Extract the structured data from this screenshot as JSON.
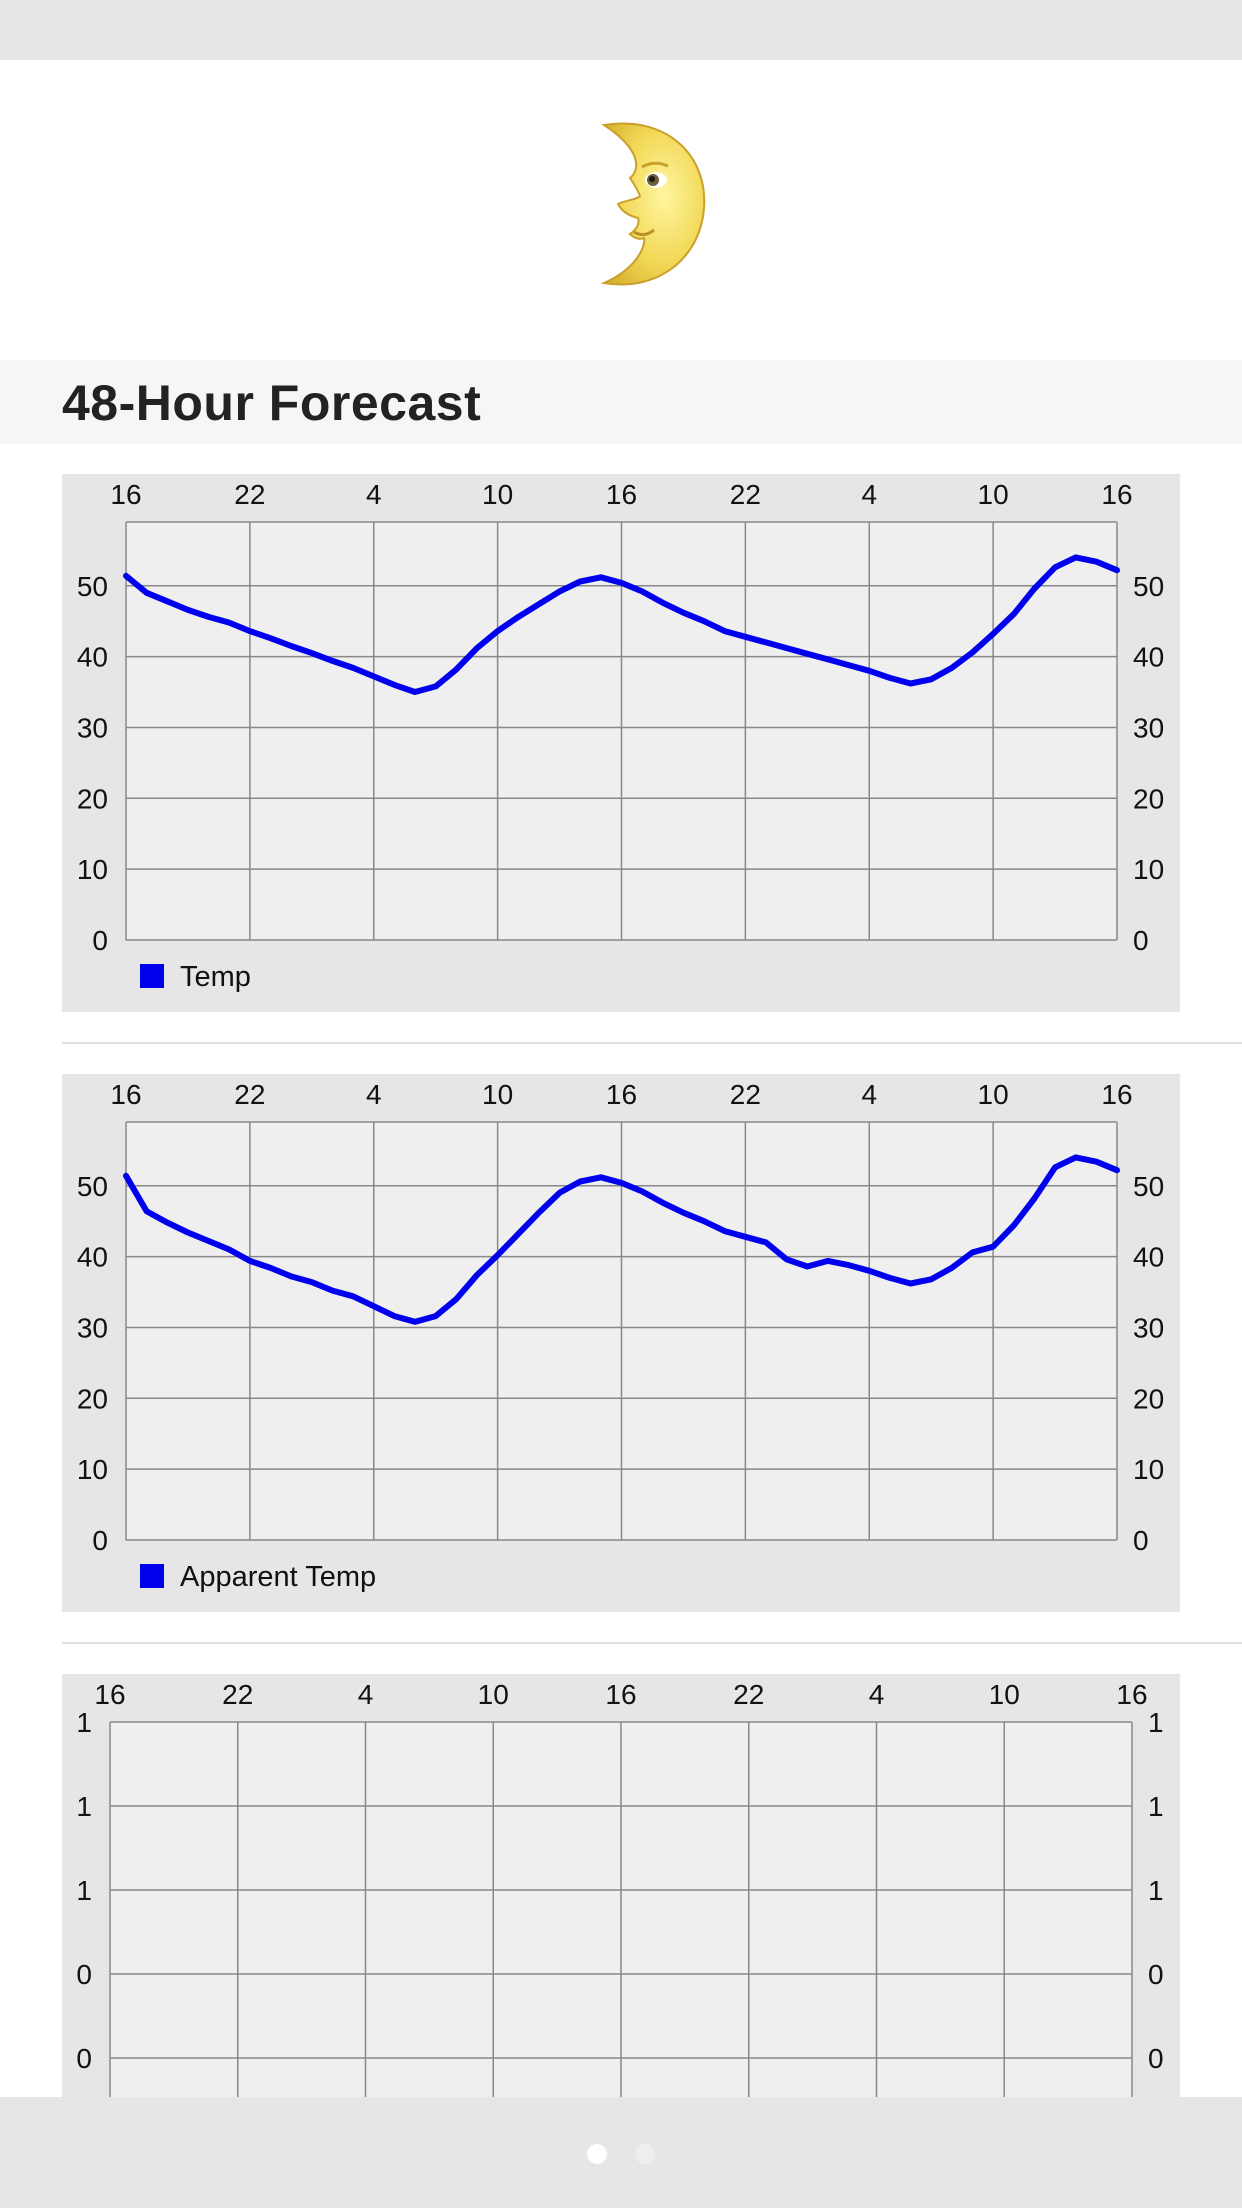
{
  "header_icon": "waxing-crescent-moon-face-icon",
  "section_title": "48-Hour Forecast",
  "colors": {
    "series": "#0000ee",
    "chart_background": "#e6e6e6",
    "plot_background": "#efefef",
    "grid": "#888888"
  },
  "page_indicator": {
    "current": 1,
    "total": 2
  },
  "chart_data": [
    {
      "type": "line",
      "x_tick_labels": [
        "16",
        "22",
        "4",
        "10",
        "16",
        "22",
        "4",
        "10",
        "16"
      ],
      "y_ticks": [
        0,
        10,
        20,
        30,
        40,
        50
      ],
      "y_tick_labels": [
        "0",
        "10",
        "20",
        "30",
        "40",
        "50"
      ],
      "ylim": [
        0,
        59
      ],
      "grid": true,
      "legend": "bottom-left",
      "series": [
        {
          "name": "Temp",
          "values": [
            51.4,
            49.0,
            47.8,
            46.6,
            45.6,
            44.8,
            43.6,
            42.6,
            41.5,
            40.5,
            39.4,
            38.4,
            37.2,
            36.0,
            35.0,
            35.8,
            38.2,
            41.2,
            43.6,
            45.6,
            47.4,
            49.2,
            50.6,
            51.2,
            50.4,
            49.2,
            47.6,
            46.2,
            45.0,
            43.6,
            42.8,
            42.0,
            41.2,
            40.4,
            39.6,
            38.8,
            38.0,
            37.0,
            36.2,
            36.8,
            38.4,
            40.6,
            43.2,
            46.0,
            49.6,
            52.6,
            54.0,
            53.4,
            52.2
          ]
        }
      ]
    },
    {
      "type": "line",
      "x_tick_labels": [
        "16",
        "22",
        "4",
        "10",
        "16",
        "22",
        "4",
        "10",
        "16"
      ],
      "y_ticks": [
        0,
        10,
        20,
        30,
        40,
        50
      ],
      "y_tick_labels": [
        "0",
        "10",
        "20",
        "30",
        "40",
        "50"
      ],
      "ylim": [
        0,
        59
      ],
      "grid": true,
      "legend": "bottom-left",
      "series": [
        {
          "name": "Apparent Temp",
          "values": [
            51.4,
            46.4,
            44.8,
            43.4,
            42.2,
            41.0,
            39.4,
            38.4,
            37.2,
            36.4,
            35.2,
            34.4,
            33.0,
            31.6,
            30.8,
            31.6,
            34.0,
            37.4,
            40.2,
            43.2,
            46.2,
            49.0,
            50.6,
            51.2,
            50.4,
            49.2,
            47.6,
            46.2,
            45.0,
            43.6,
            42.8,
            42.0,
            39.6,
            38.6,
            39.4,
            38.8,
            38.0,
            37.0,
            36.2,
            36.8,
            38.4,
            40.6,
            41.4,
            44.4,
            48.2,
            52.6,
            54.0,
            53.4,
            52.2
          ]
        }
      ]
    },
    {
      "type": "line",
      "x_tick_labels": [
        "16",
        "22",
        "4",
        "10",
        "16",
        "22",
        "4",
        "10",
        "16"
      ],
      "y_tick_labels": [
        "1",
        "1",
        "1",
        "0",
        "0"
      ],
      "grid": true,
      "series": []
    }
  ]
}
